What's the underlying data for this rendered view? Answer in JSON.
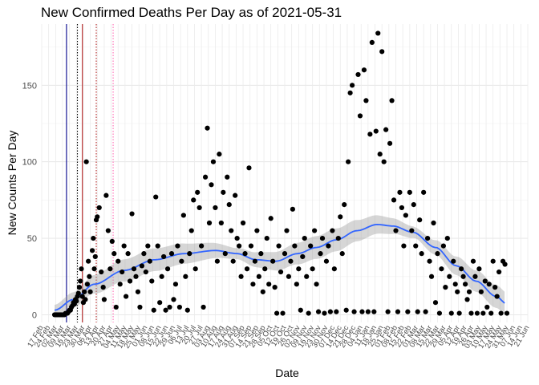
{
  "chart_data": {
    "type": "scatter",
    "title": "New Confirmed Deaths Per Day as of 2021-05-31",
    "xlabel": "Date",
    "ylabel": "New Counts Per Day",
    "xlim": [
      "2020-02-17",
      "2021-06-21"
    ],
    "ylim": [
      -5,
      190
    ],
    "y_ticks": [
      0,
      50,
      100,
      150
    ],
    "x_tick_labels": [
      "17 Feb",
      "24 Feb",
      "02 Mar",
      "09 Mar",
      "16 Mar",
      "23 Mar",
      "30 Mar",
      "06 Apr",
      "13 Apr",
      "20 Apr",
      "27 Apr",
      "04 May",
      "11 May",
      "18 May",
      "25 May",
      "01 Jun",
      "08 Jun",
      "15 Jun",
      "22 Jun",
      "29 Jun",
      "06 Jul",
      "13 Jul",
      "20 Jul",
      "27 Jul",
      "03 Aug",
      "10 Aug",
      "17 Aug",
      "24 Aug",
      "31 Aug",
      "07 Sep",
      "14 Sep",
      "21 Sep",
      "28 Sep",
      "05 Oct",
      "12 Oct",
      "19 Oct",
      "26 Oct",
      "02 Nov",
      "09 Nov",
      "16 Nov",
      "23 Nov",
      "30 Nov",
      "07 Dec",
      "14 Dec",
      "21 Dec",
      "28 Dec",
      "04 Jan",
      "11 Jan",
      "18 Jan",
      "25 Jan",
      "01 Feb",
      "08 Feb",
      "15 Feb",
      "22 Feb",
      "01 Mar",
      "08 Mar",
      "15 Mar",
      "22 Mar",
      "29 Mar",
      "05 Apr",
      "12 Apr",
      "19 Apr",
      "26 Apr",
      "03 May",
      "10 May",
      "17 May",
      "24 May",
      "31 May",
      "07 Jun",
      "14 Jun",
      "21 Jun"
    ],
    "grid": true,
    "legend": "none",
    "vertical_lines": [
      {
        "x": "2020-03-13",
        "color": "#00008B",
        "style": "solid"
      },
      {
        "x": "2020-03-24",
        "color": "#000000",
        "style": "dotted"
      },
      {
        "x": "2020-03-29",
        "color": "#B22222",
        "style": "solid"
      },
      {
        "x": "2020-04-12",
        "color": "#B22222",
        "style": "dotted"
      },
      {
        "x": "2020-04-29",
        "color": "#FF69B4",
        "style": "dotted"
      }
    ],
    "series": [
      {
        "values": [
          [
            "2020-03-01",
            0
          ],
          [
            "2020-03-02",
            0
          ],
          [
            "2020-03-03",
            0
          ],
          [
            "2020-03-04",
            0
          ],
          [
            "2020-03-05",
            0
          ],
          [
            "2020-03-06",
            0
          ],
          [
            "2020-03-07",
            0
          ],
          [
            "2020-03-08",
            0
          ],
          [
            "2020-03-09",
            0
          ],
          [
            "2020-03-10",
            0
          ],
          [
            "2020-03-11",
            0
          ],
          [
            "2020-03-12",
            1
          ],
          [
            "2020-03-13",
            1
          ],
          [
            "2020-03-14",
            1
          ],
          [
            "2020-03-15",
            2
          ],
          [
            "2020-03-16",
            3
          ],
          [
            "2020-03-17",
            3
          ],
          [
            "2020-03-18",
            5
          ],
          [
            "2020-03-19",
            6
          ],
          [
            "2020-03-20",
            8
          ],
          [
            "2020-03-21",
            7
          ],
          [
            "2020-03-22",
            10
          ],
          [
            "2020-03-23",
            9
          ],
          [
            "2020-03-24",
            12
          ],
          [
            "2020-03-25",
            14
          ],
          [
            "2020-03-26",
            18
          ],
          [
            "2020-03-27",
            22
          ],
          [
            "2020-03-28",
            30
          ],
          [
            "2020-03-29",
            12
          ],
          [
            "2020-03-30",
            8
          ],
          [
            "2020-03-31",
            15
          ],
          [
            "2020-04-01",
            10
          ],
          [
            "2020-04-02",
            100
          ],
          [
            "2020-04-03",
            20
          ],
          [
            "2020-04-04",
            35
          ],
          [
            "2020-04-05",
            25
          ],
          [
            "2020-04-06",
            15
          ],
          [
            "2020-04-08",
            42
          ],
          [
            "2020-04-09",
            50
          ],
          [
            "2020-04-10",
            30
          ],
          [
            "2020-04-11",
            38
          ],
          [
            "2020-04-12",
            62
          ],
          [
            "2020-04-13",
            64
          ],
          [
            "2020-04-15",
            70
          ],
          [
            "2020-04-17",
            28
          ],
          [
            "2020-04-19",
            18
          ],
          [
            "2020-04-20",
            10
          ],
          [
            "2020-04-22",
            78
          ],
          [
            "2020-04-24",
            55
          ],
          [
            "2020-04-26",
            30
          ],
          [
            "2020-04-28",
            48
          ],
          [
            "2020-04-30",
            40
          ],
          [
            "2020-05-02",
            5
          ],
          [
            "2020-05-04",
            35
          ],
          [
            "2020-05-06",
            20
          ],
          [
            "2020-05-08",
            28
          ],
          [
            "2020-05-10",
            45
          ],
          [
            "2020-05-12",
            12
          ],
          [
            "2020-05-14",
            40
          ],
          [
            "2020-05-16",
            22
          ],
          [
            "2020-05-18",
            66
          ],
          [
            "2020-05-20",
            30
          ],
          [
            "2020-05-22",
            25
          ],
          [
            "2020-05-24",
            15
          ],
          [
            "2020-05-26",
            5
          ],
          [
            "2020-05-28",
            32
          ],
          [
            "2020-05-30",
            40
          ],
          [
            "2020-06-01",
            28
          ],
          [
            "2020-06-03",
            45
          ],
          [
            "2020-06-05",
            35
          ],
          [
            "2020-06-07",
            22
          ],
          [
            "2020-06-09",
            3
          ],
          [
            "2020-06-11",
            77
          ],
          [
            "2020-06-13",
            45
          ],
          [
            "2020-06-15",
            8
          ],
          [
            "2020-06-17",
            25
          ],
          [
            "2020-06-19",
            38
          ],
          [
            "2020-06-21",
            3
          ],
          [
            "2020-06-23",
            30
          ],
          [
            "2020-06-25",
            5
          ],
          [
            "2020-06-27",
            40
          ],
          [
            "2020-06-29",
            10
          ],
          [
            "2020-07-01",
            20
          ],
          [
            "2020-07-03",
            45
          ],
          [
            "2020-07-05",
            5
          ],
          [
            "2020-07-07",
            35
          ],
          [
            "2020-07-09",
            65
          ],
          [
            "2020-07-11",
            25
          ],
          [
            "2020-07-13",
            3
          ],
          [
            "2020-07-15",
            40
          ],
          [
            "2020-07-17",
            55
          ],
          [
            "2020-07-19",
            75
          ],
          [
            "2020-07-21",
            30
          ],
          [
            "2020-07-23",
            80
          ],
          [
            "2020-07-25",
            70
          ],
          [
            "2020-07-27",
            45
          ],
          [
            "2020-07-29",
            5
          ],
          [
            "2020-07-31",
            90
          ],
          [
            "2020-08-02",
            122
          ],
          [
            "2020-08-04",
            60
          ],
          [
            "2020-08-06",
            85
          ],
          [
            "2020-08-08",
            100
          ],
          [
            "2020-08-10",
            70
          ],
          [
            "2020-08-12",
            35
          ],
          [
            "2020-08-14",
            105
          ],
          [
            "2020-08-16",
            60
          ],
          [
            "2020-08-18",
            80
          ],
          [
            "2020-08-20",
            40
          ],
          [
            "2020-08-22",
            90
          ],
          [
            "2020-08-24",
            72
          ],
          [
            "2020-08-26",
            55
          ],
          [
            "2020-08-28",
            35
          ],
          [
            "2020-08-30",
            78
          ],
          [
            "2020-09-01",
            50
          ],
          [
            "2020-09-03",
            45
          ],
          [
            "2020-09-05",
            25
          ],
          [
            "2020-09-07",
            60
          ],
          [
            "2020-09-09",
            40
          ],
          [
            "2020-09-11",
            30
          ],
          [
            "2020-09-13",
            96
          ],
          [
            "2020-09-15",
            45
          ],
          [
            "2020-09-17",
            20
          ],
          [
            "2020-09-19",
            35
          ],
          [
            "2020-09-21",
            55
          ],
          [
            "2020-09-23",
            25
          ],
          [
            "2020-09-25",
            40
          ],
          [
            "2020-09-27",
            15
          ],
          [
            "2020-09-29",
            30
          ],
          [
            "2020-10-01",
            50
          ],
          [
            "2020-10-03",
            20
          ],
          [
            "2020-10-05",
            63
          ],
          [
            "2020-10-07",
            35
          ],
          [
            "2020-10-09",
            18
          ],
          [
            "2020-10-11",
            1
          ],
          [
            "2020-10-13",
            45
          ],
          [
            "2020-10-15",
            28
          ],
          [
            "2020-10-17",
            1
          ],
          [
            "2020-10-19",
            40
          ],
          [
            "2020-10-21",
            55
          ],
          [
            "2020-10-23",
            25
          ],
          [
            "2020-10-25",
            35
          ],
          [
            "2020-10-27",
            69
          ],
          [
            "2020-10-29",
            45
          ],
          [
            "2020-10-31",
            20
          ],
          [
            "2020-11-02",
            30
          ],
          [
            "2020-11-04",
            3
          ],
          [
            "2020-11-06",
            38
          ],
          [
            "2020-11-08",
            50
          ],
          [
            "2020-11-10",
            25
          ],
          [
            "2020-11-12",
            1
          ],
          [
            "2020-11-14",
            45
          ],
          [
            "2020-11-16",
            30
          ],
          [
            "2020-11-18",
            55
          ],
          [
            "2020-11-20",
            20
          ],
          [
            "2020-11-22",
            2
          ],
          [
            "2020-11-24",
            40
          ],
          [
            "2020-11-26",
            50
          ],
          [
            "2020-11-28",
            1
          ],
          [
            "2020-11-30",
            35
          ],
          [
            "2020-12-02",
            45
          ],
          [
            "2020-12-04",
            2
          ],
          [
            "2020-12-06",
            55
          ],
          [
            "2020-12-08",
            30
          ],
          [
            "2020-12-10",
            2
          ],
          [
            "2020-12-12",
            50
          ],
          [
            "2020-12-14",
            64
          ],
          [
            "2020-12-16",
            40
          ],
          [
            "2020-12-18",
            72
          ],
          [
            "2020-12-20",
            3
          ],
          [
            "2020-12-22",
            100
          ],
          [
            "2020-12-24",
            145
          ],
          [
            "2020-12-26",
            150
          ],
          [
            "2020-12-28",
            2
          ],
          [
            "2021-01-01",
            157
          ],
          [
            "2021-01-03",
            130
          ],
          [
            "2021-01-05",
            2
          ],
          [
            "2021-01-07",
            160
          ],
          [
            "2021-01-09",
            140
          ],
          [
            "2021-01-11",
            2
          ],
          [
            "2021-01-13",
            118
          ],
          [
            "2021-01-15",
            178
          ],
          [
            "2021-01-17",
            2
          ],
          [
            "2021-01-19",
            120
          ],
          [
            "2021-01-21",
            184
          ],
          [
            "2021-01-23",
            105
          ],
          [
            "2021-01-25",
            172
          ],
          [
            "2021-01-27",
            100
          ],
          [
            "2021-01-29",
            121
          ],
          [
            "2021-01-31",
            2
          ],
          [
            "2021-02-02",
            112
          ],
          [
            "2021-02-04",
            140
          ],
          [
            "2021-02-06",
            75
          ],
          [
            "2021-02-08",
            55
          ],
          [
            "2021-02-10",
            2
          ],
          [
            "2021-02-12",
            80
          ],
          [
            "2021-02-14",
            70
          ],
          [
            "2021-02-16",
            45
          ],
          [
            "2021-02-18",
            65
          ],
          [
            "2021-02-20",
            2
          ],
          [
            "2021-02-22",
            80
          ],
          [
            "2021-02-24",
            55
          ],
          [
            "2021-02-26",
            72
          ],
          [
            "2021-02-28",
            45
          ],
          [
            "2021-03-02",
            2
          ],
          [
            "2021-03-04",
            62
          ],
          [
            "2021-03-06",
            40
          ],
          [
            "2021-03-08",
            80
          ],
          [
            "2021-03-10",
            2
          ],
          [
            "2021-03-12",
            50
          ],
          [
            "2021-03-14",
            35
          ],
          [
            "2021-03-16",
            25
          ],
          [
            "2021-03-18",
            60
          ],
          [
            "2021-03-20",
            8
          ],
          [
            "2021-03-22",
            40
          ],
          [
            "2021-03-24",
            1
          ],
          [
            "2021-03-26",
            30
          ],
          [
            "2021-03-28",
            45
          ],
          [
            "2021-03-30",
            18
          ],
          [
            "2021-04-01",
            50
          ],
          [
            "2021-04-03",
            25
          ],
          [
            "2021-04-05",
            1
          ],
          [
            "2021-04-07",
            35
          ],
          [
            "2021-04-09",
            20
          ],
          [
            "2021-04-11",
            15
          ],
          [
            "2021-04-13",
            1
          ],
          [
            "2021-04-15",
            30
          ],
          [
            "2021-04-17",
            25
          ],
          [
            "2021-04-19",
            20
          ],
          [
            "2021-04-21",
            10
          ],
          [
            "2021-04-23",
            15
          ],
          [
            "2021-04-25",
            1
          ],
          [
            "2021-04-27",
            35
          ],
          [
            "2021-04-29",
            25
          ],
          [
            "2021-05-01",
            1
          ],
          [
            "2021-05-03",
            30
          ],
          [
            "2021-05-05",
            15
          ],
          [
            "2021-05-07",
            1
          ],
          [
            "2021-05-09",
            22
          ],
          [
            "2021-05-11",
            5
          ],
          [
            "2021-05-13",
            20
          ],
          [
            "2021-05-15",
            1
          ],
          [
            "2021-05-17",
            35
          ],
          [
            "2021-05-19",
            18
          ],
          [
            "2021-05-21",
            12
          ],
          [
            "2021-05-23",
            28
          ],
          [
            "2021-05-25",
            1
          ],
          [
            "2021-05-27",
            35
          ],
          [
            "2021-05-29",
            33
          ],
          [
            "2021-05-31",
            1
          ]
        ]
      }
    ],
    "trend": {
      "color": "#3366FF",
      "values": [
        [
          "2020-03-01",
          3
        ],
        [
          "2020-03-20",
          10
        ],
        [
          "2020-04-10",
          20
        ],
        [
          "2020-05-10",
          29
        ],
        [
          "2020-06-10",
          36
        ],
        [
          "2020-07-10",
          40
        ],
        [
          "2020-08-10",
          42
        ],
        [
          "2020-09-01",
          40
        ],
        [
          "2020-09-20",
          36
        ],
        [
          "2020-10-10",
          35
        ],
        [
          "2020-11-01",
          40
        ],
        [
          "2020-11-20",
          44
        ],
        [
          "2020-12-10",
          49
        ],
        [
          "2020-12-31",
          55
        ],
        [
          "2021-01-20",
          59
        ],
        [
          "2021-02-05",
          58
        ],
        [
          "2021-02-25",
          54
        ],
        [
          "2021-03-20",
          44
        ],
        [
          "2021-04-10",
          32
        ],
        [
          "2021-04-30",
          22
        ],
        [
          "2021-05-20",
          12
        ],
        [
          "2021-05-31",
          7
        ]
      ]
    }
  }
}
